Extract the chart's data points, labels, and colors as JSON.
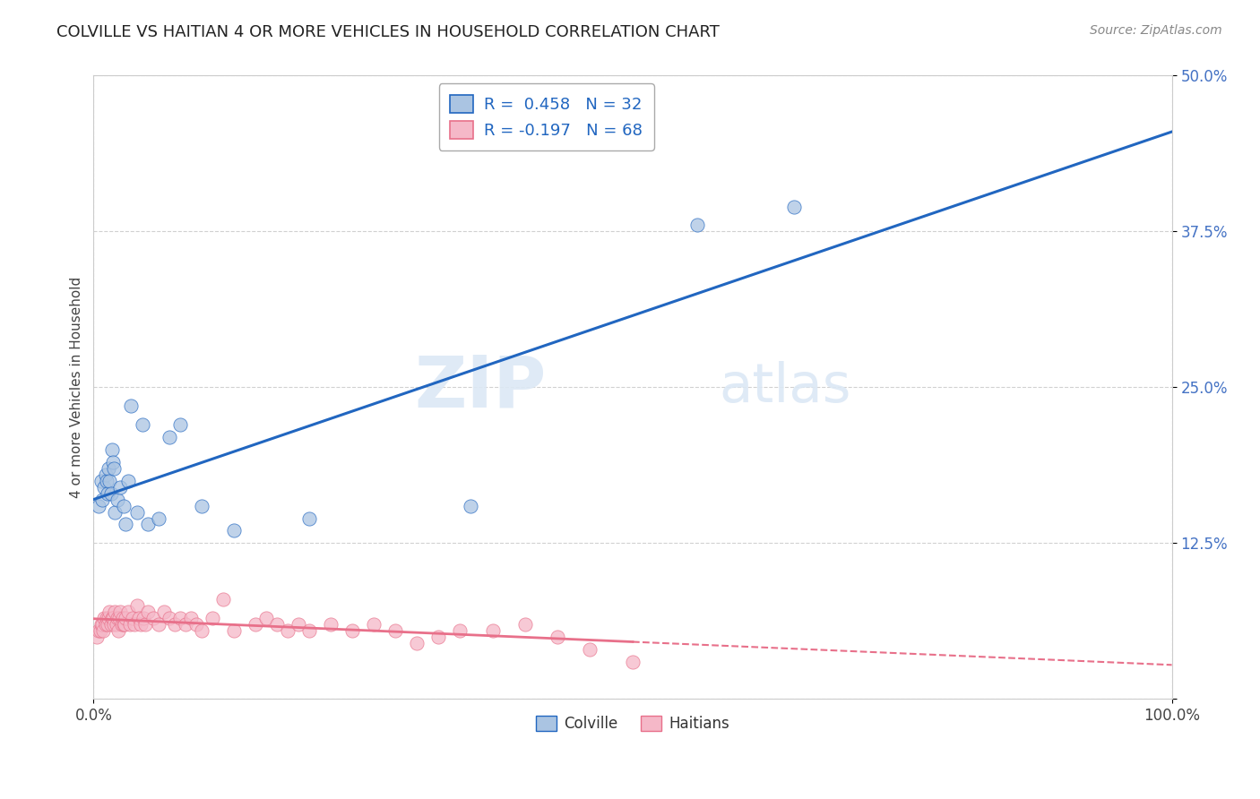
{
  "title": "COLVILLE VS HAITIAN 4 OR MORE VEHICLES IN HOUSEHOLD CORRELATION CHART",
  "source": "Source: ZipAtlas.com",
  "ylabel_label": "4 or more Vehicles in Household",
  "legend_colville": "R =  0.458   N = 32",
  "legend_haitians": "R = -0.197   N = 68",
  "colville_color": "#aac4e2",
  "haitians_color": "#f5b8c8",
  "colville_line_color": "#2166c0",
  "haitians_line_color": "#e8708a",
  "watermark_zip": "ZIP",
  "watermark_atlas": "atlas",
  "colville_x": [
    0.005,
    0.007,
    0.008,
    0.01,
    0.011,
    0.012,
    0.013,
    0.014,
    0.015,
    0.016,
    0.017,
    0.018,
    0.019,
    0.02,
    0.022,
    0.025,
    0.028,
    0.03,
    0.032,
    0.035,
    0.04,
    0.045,
    0.05,
    0.06,
    0.07,
    0.08,
    0.1,
    0.13,
    0.2,
    0.35,
    0.56,
    0.65
  ],
  "colville_y": [
    0.155,
    0.175,
    0.16,
    0.17,
    0.18,
    0.175,
    0.165,
    0.185,
    0.175,
    0.165,
    0.2,
    0.19,
    0.185,
    0.15,
    0.16,
    0.17,
    0.155,
    0.14,
    0.175,
    0.235,
    0.15,
    0.22,
    0.14,
    0.145,
    0.21,
    0.22,
    0.155,
    0.135,
    0.145,
    0.155,
    0.38,
    0.395
  ],
  "haitians_x": [
    0.003,
    0.005,
    0.006,
    0.007,
    0.008,
    0.009,
    0.01,
    0.011,
    0.012,
    0.013,
    0.014,
    0.015,
    0.016,
    0.017,
    0.018,
    0.019,
    0.02,
    0.021,
    0.022,
    0.023,
    0.024,
    0.025,
    0.026,
    0.027,
    0.028,
    0.029,
    0.03,
    0.032,
    0.034,
    0.036,
    0.038,
    0.04,
    0.042,
    0.044,
    0.046,
    0.048,
    0.05,
    0.055,
    0.06,
    0.065,
    0.07,
    0.075,
    0.08,
    0.085,
    0.09,
    0.095,
    0.1,
    0.11,
    0.12,
    0.13,
    0.15,
    0.16,
    0.17,
    0.18,
    0.19,
    0.2,
    0.22,
    0.24,
    0.26,
    0.28,
    0.3,
    0.32,
    0.34,
    0.37,
    0.4,
    0.43,
    0.46,
    0.5
  ],
  "haitians_y": [
    0.05,
    0.055,
    0.055,
    0.06,
    0.06,
    0.055,
    0.065,
    0.06,
    0.065,
    0.06,
    0.065,
    0.07,
    0.06,
    0.065,
    0.065,
    0.06,
    0.07,
    0.06,
    0.065,
    0.055,
    0.065,
    0.07,
    0.06,
    0.065,
    0.06,
    0.06,
    0.065,
    0.07,
    0.06,
    0.065,
    0.06,
    0.075,
    0.065,
    0.06,
    0.065,
    0.06,
    0.07,
    0.065,
    0.06,
    0.07,
    0.065,
    0.06,
    0.065,
    0.06,
    0.065,
    0.06,
    0.055,
    0.065,
    0.08,
    0.055,
    0.06,
    0.065,
    0.06,
    0.055,
    0.06,
    0.055,
    0.06,
    0.055,
    0.06,
    0.055,
    0.045,
    0.05,
    0.055,
    0.055,
    0.06,
    0.05,
    0.04,
    0.03
  ],
  "xlim": [
    0.0,
    1.0
  ],
  "ylim": [
    0.0,
    0.5
  ],
  "yticks": [
    0.0,
    0.125,
    0.25,
    0.375,
    0.5
  ],
  "ytick_labels": [
    "",
    "12.5%",
    "25.0%",
    "37.5%",
    "50.0%"
  ],
  "xticks": [
    0.0,
    1.0
  ],
  "xtick_labels": [
    "0.0%",
    "100.0%"
  ],
  "background_color": "#ffffff"
}
